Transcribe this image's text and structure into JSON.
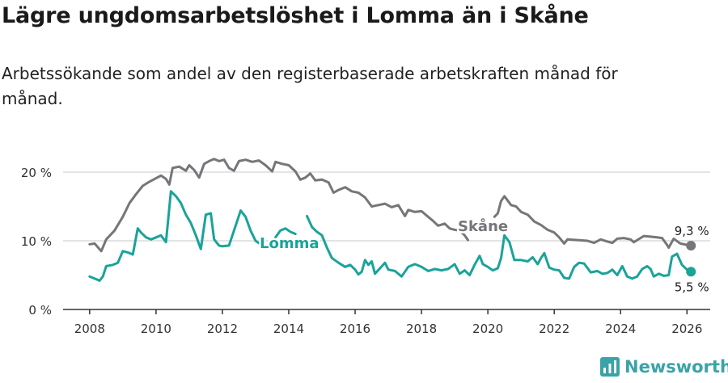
{
  "title": "Lägre ungdomsarbetslöshet i Lomma än i Skåne",
  "subtitle": "Arbetssökande som andel av den registerbaserade arbetskraften månad för månad.",
  "brand": "Newsworthy",
  "colors": {
    "skane": "#76767a",
    "lomma": "#1aa399",
    "grid": "#dcdcdc",
    "axis": "#333333",
    "brand": "#3aa3a7"
  },
  "chart_data": {
    "type": "line",
    "title": "Lägre ungdomsarbetslöshet i Lomma än i Skåne",
    "xlabel": "",
    "ylabel": "",
    "xlim": [
      2007.2,
      2026.7
    ],
    "ylim": [
      0,
      20
    ],
    "x_ticks": [
      2008,
      2010,
      2012,
      2014,
      2016,
      2018,
      2020,
      2022,
      2024,
      2026
    ],
    "x_tick_labels": [
      "2008",
      "2010",
      "2012",
      "2014",
      "2016",
      "2018",
      "2020",
      "2022",
      "2024",
      "2026"
    ],
    "y_ticks": [
      0,
      10,
      20
    ],
    "y_tick_labels": [
      "0 %",
      "10 %",
      "20 %"
    ],
    "grid": true,
    "series": [
      {
        "name": "Skåne",
        "label": "Skåne",
        "end_label": "9,3 %",
        "color": "#76767a",
        "points": [
          [
            2008.0,
            9.5
          ],
          [
            2008.15,
            9.6
          ],
          [
            2008.35,
            8.5
          ],
          [
            2008.5,
            10.2
          ],
          [
            2008.75,
            11.5
          ],
          [
            2009.0,
            13.5
          ],
          [
            2009.2,
            15.5
          ],
          [
            2009.4,
            16.8
          ],
          [
            2009.6,
            18.0
          ],
          [
            2009.8,
            18.6
          ],
          [
            2010.0,
            19.1
          ],
          [
            2010.15,
            19.5
          ],
          [
            2010.3,
            19.0
          ],
          [
            2010.4,
            18.2
          ],
          [
            2010.5,
            20.6
          ],
          [
            2010.7,
            20.8
          ],
          [
            2010.9,
            20.2
          ],
          [
            2011.0,
            21.0
          ],
          [
            2011.15,
            20.3
          ],
          [
            2011.3,
            19.2
          ],
          [
            2011.45,
            21.2
          ],
          [
            2011.6,
            21.6
          ],
          [
            2011.75,
            21.9
          ],
          [
            2011.9,
            21.6
          ],
          [
            2012.05,
            21.8
          ],
          [
            2012.2,
            20.6
          ],
          [
            2012.35,
            20.2
          ],
          [
            2012.5,
            21.6
          ],
          [
            2012.7,
            21.8
          ],
          [
            2012.9,
            21.5
          ],
          [
            2013.1,
            21.7
          ],
          [
            2013.3,
            21.0
          ],
          [
            2013.5,
            20.1
          ],
          [
            2013.6,
            21.5
          ],
          [
            2013.8,
            21.2
          ],
          [
            2014.0,
            21.0
          ],
          [
            2014.2,
            20.1
          ],
          [
            2014.35,
            18.9
          ],
          [
            2014.5,
            19.2
          ],
          [
            2014.65,
            19.8
          ],
          [
            2014.8,
            18.8
          ],
          [
            2015.0,
            18.9
          ],
          [
            2015.2,
            18.5
          ],
          [
            2015.35,
            17.0
          ],
          [
            2015.5,
            17.4
          ],
          [
            2015.7,
            17.8
          ],
          [
            2015.9,
            17.2
          ],
          [
            2016.1,
            17.0
          ],
          [
            2016.3,
            16.3
          ],
          [
            2016.5,
            15.0
          ],
          [
            2016.7,
            15.2
          ],
          [
            2016.9,
            15.4
          ],
          [
            2017.1,
            14.9
          ],
          [
            2017.3,
            15.2
          ],
          [
            2017.5,
            13.6
          ],
          [
            2017.6,
            14.5
          ],
          [
            2017.8,
            14.2
          ],
          [
            2018.0,
            14.3
          ],
          [
            2018.2,
            13.5
          ],
          [
            2018.35,
            12.9
          ],
          [
            2018.5,
            12.2
          ],
          [
            2018.7,
            12.5
          ],
          [
            2018.85,
            11.8
          ],
          [
            2019.0,
            11.6
          ],
          [
            2019.15,
            11.5
          ],
          [
            2019.3,
            10.8
          ],
          [
            2019.4,
            10.1
          ]
        ]
      },
      {
        "name": "Skåne (2020–)",
        "color": "#76767a",
        "points": [
          [
            2020.2,
            13.5
          ],
          [
            2020.3,
            14.0
          ],
          [
            2020.4,
            15.8
          ],
          [
            2020.5,
            16.5
          ],
          [
            2020.7,
            15.2
          ],
          [
            2020.85,
            15.0
          ],
          [
            2021.0,
            14.2
          ],
          [
            2021.2,
            13.8
          ],
          [
            2021.4,
            12.8
          ],
          [
            2021.6,
            12.3
          ],
          [
            2021.8,
            11.6
          ],
          [
            2022.0,
            11.2
          ],
          [
            2022.15,
            10.5
          ],
          [
            2022.3,
            9.6
          ],
          [
            2022.4,
            10.2
          ],
          [
            2022.7,
            10.1
          ],
          [
            2023.0,
            10.0
          ],
          [
            2023.2,
            9.7
          ],
          [
            2023.4,
            10.2
          ],
          [
            2023.6,
            9.9
          ],
          [
            2023.75,
            9.7
          ],
          [
            2023.9,
            10.3
          ],
          [
            2024.1,
            10.4
          ],
          [
            2024.3,
            10.2
          ],
          [
            2024.4,
            9.8
          ],
          [
            2024.5,
            10.1
          ],
          [
            2024.7,
            10.7
          ],
          [
            2024.9,
            10.6
          ],
          [
            2025.1,
            10.5
          ],
          [
            2025.25,
            10.4
          ],
          [
            2025.4,
            9.4
          ],
          [
            2025.45,
            9.0
          ],
          [
            2025.6,
            10.3
          ],
          [
            2025.8,
            9.6
          ],
          [
            2026.0,
            9.4
          ],
          [
            2026.12,
            9.3
          ]
        ]
      },
      {
        "name": "Lomma",
        "label": "Lomma",
        "end_label": "5,5 %",
        "color": "#1aa399",
        "points": [
          [
            2008.0,
            4.8
          ],
          [
            2008.15,
            4.5
          ],
          [
            2008.3,
            4.2
          ],
          [
            2008.4,
            4.8
          ],
          [
            2008.5,
            6.3
          ],
          [
            2008.7,
            6.5
          ],
          [
            2008.85,
            6.8
          ],
          [
            2009.0,
            8.5
          ],
          [
            2009.15,
            8.3
          ],
          [
            2009.3,
            8.0
          ],
          [
            2009.45,
            11.8
          ],
          [
            2009.55,
            11.2
          ],
          [
            2009.7,
            10.5
          ],
          [
            2009.85,
            10.2
          ],
          [
            2010.0,
            10.5
          ],
          [
            2010.15,
            10.8
          ],
          [
            2010.3,
            9.8
          ],
          [
            2010.45,
            17.2
          ],
          [
            2010.6,
            16.5
          ],
          [
            2010.75,
            15.5
          ],
          [
            2010.9,
            13.8
          ],
          [
            2011.05,
            12.6
          ],
          [
            2011.2,
            10.8
          ],
          [
            2011.35,
            8.8
          ],
          [
            2011.5,
            13.8
          ],
          [
            2011.65,
            14.0
          ],
          [
            2011.75,
            10.2
          ],
          [
            2011.9,
            9.3
          ],
          [
            2012.0,
            9.2
          ],
          [
            2012.2,
            9.3
          ],
          [
            2012.4,
            12.2
          ],
          [
            2012.55,
            14.4
          ],
          [
            2012.7,
            13.5
          ],
          [
            2012.85,
            11.5
          ],
          [
            2013.0,
            10.0
          ],
          [
            2013.15,
            9.5
          ]
        ]
      },
      {
        "name": "Lomma (2013.6–)",
        "color": "#1aa399",
        "points": [
          [
            2013.6,
            10.5
          ],
          [
            2013.75,
            11.5
          ],
          [
            2013.9,
            11.8
          ],
          [
            2014.05,
            11.3
          ],
          [
            2014.2,
            11.0
          ]
        ]
      },
      {
        "name": "Lomma (2014.5–)",
        "color": "#1aa399",
        "points": [
          [
            2014.55,
            13.6
          ],
          [
            2014.7,
            12.0
          ],
          [
            2014.85,
            11.3
          ],
          [
            2015.0,
            10.8
          ],
          [
            2015.15,
            9.0
          ],
          [
            2015.3,
            7.5
          ],
          [
            2015.5,
            6.8
          ],
          [
            2015.7,
            6.2
          ],
          [
            2015.85,
            6.5
          ],
          [
            2016.0,
            5.8
          ],
          [
            2016.1,
            5.1
          ],
          [
            2016.2,
            5.5
          ],
          [
            2016.3,
            7.2
          ],
          [
            2016.4,
            6.5
          ],
          [
            2016.5,
            7.0
          ],
          [
            2016.6,
            5.2
          ],
          [
            2016.75,
            6.0
          ],
          [
            2016.9,
            6.8
          ],
          [
            2017.0,
            5.8
          ],
          [
            2017.2,
            5.6
          ],
          [
            2017.4,
            4.8
          ],
          [
            2017.6,
            6.2
          ],
          [
            2017.8,
            6.6
          ],
          [
            2018.0,
            6.2
          ],
          [
            2018.2,
            5.6
          ],
          [
            2018.4,
            5.9
          ],
          [
            2018.6,
            5.7
          ],
          [
            2018.8,
            5.9
          ],
          [
            2019.0,
            6.6
          ],
          [
            2019.15,
            5.2
          ],
          [
            2019.3,
            5.7
          ],
          [
            2019.45,
            5.0
          ],
          [
            2019.6,
            6.5
          ],
          [
            2019.75,
            7.8
          ],
          [
            2019.85,
            6.6
          ],
          [
            2020.0,
            6.2
          ],
          [
            2020.15,
            5.7
          ],
          [
            2020.3,
            6.0
          ],
          [
            2020.4,
            7.5
          ],
          [
            2020.5,
            10.8
          ],
          [
            2020.65,
            9.8
          ],
          [
            2020.8,
            7.2
          ],
          [
            2021.0,
            7.2
          ],
          [
            2021.2,
            7.0
          ],
          [
            2021.35,
            7.6
          ],
          [
            2021.5,
            6.6
          ],
          [
            2021.6,
            7.5
          ],
          [
            2021.7,
            8.2
          ],
          [
            2021.85,
            6.1
          ],
          [
            2022.0,
            5.8
          ],
          [
            2022.15,
            5.7
          ],
          [
            2022.3,
            4.6
          ],
          [
            2022.45,
            4.5
          ],
          [
            2022.6,
            6.2
          ],
          [
            2022.75,
            6.8
          ],
          [
            2022.9,
            6.7
          ],
          [
            2023.1,
            5.4
          ],
          [
            2023.3,
            5.6
          ],
          [
            2023.45,
            5.2
          ],
          [
            2023.6,
            5.3
          ],
          [
            2023.75,
            5.8
          ],
          [
            2023.9,
            5.0
          ],
          [
            2024.05,
            6.3
          ],
          [
            2024.2,
            4.8
          ],
          [
            2024.35,
            4.5
          ],
          [
            2024.5,
            4.8
          ],
          [
            2024.65,
            5.9
          ],
          [
            2024.8,
            6.3
          ],
          [
            2024.9,
            5.9
          ],
          [
            2025.0,
            4.8
          ],
          [
            2025.15,
            5.2
          ],
          [
            2025.3,
            4.9
          ],
          [
            2025.45,
            5.0
          ],
          [
            2025.55,
            7.7
          ],
          [
            2025.7,
            8.1
          ],
          [
            2025.85,
            6.5
          ],
          [
            2026.0,
            5.8
          ],
          [
            2026.12,
            5.5
          ]
        ]
      }
    ]
  }
}
